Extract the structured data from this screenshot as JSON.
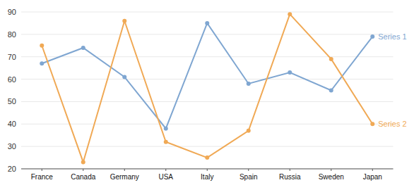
{
  "chart_data": {
    "type": "line",
    "categories": [
      "France",
      "Canada",
      "Germany",
      "USA",
      "Italy",
      "Spain",
      "Russia",
      "Sweden",
      "Japan"
    ],
    "series": [
      {
        "name": "Series 1",
        "color": "#7fa6d1",
        "marker": "circle",
        "values": [
          67,
          74,
          61,
          38,
          85,
          58,
          63,
          55,
          79
        ]
      },
      {
        "name": "Series 2",
        "color": "#f0a955",
        "marker": "circle",
        "values": [
          75,
          23,
          86,
          32,
          25,
          37,
          89,
          69,
          40
        ]
      }
    ],
    "ylim": [
      20,
      90
    ],
    "yticks": [
      20,
      30,
      40,
      50,
      60,
      70,
      80,
      90
    ],
    "grid": true
  }
}
